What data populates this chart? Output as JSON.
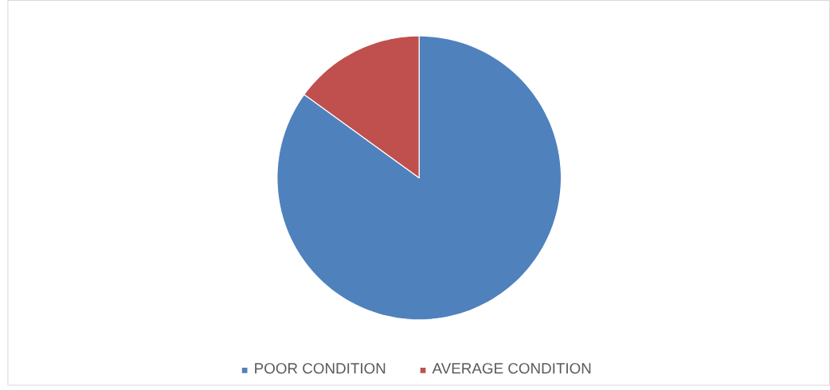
{
  "chart_data": {
    "type": "pie",
    "categories": [
      "POOR CONDITION",
      "AVERAGE CONDITION"
    ],
    "values": [
      85,
      15
    ],
    "colors": [
      "#4f81bd",
      "#c0504d"
    ],
    "legend": "bottom"
  }
}
